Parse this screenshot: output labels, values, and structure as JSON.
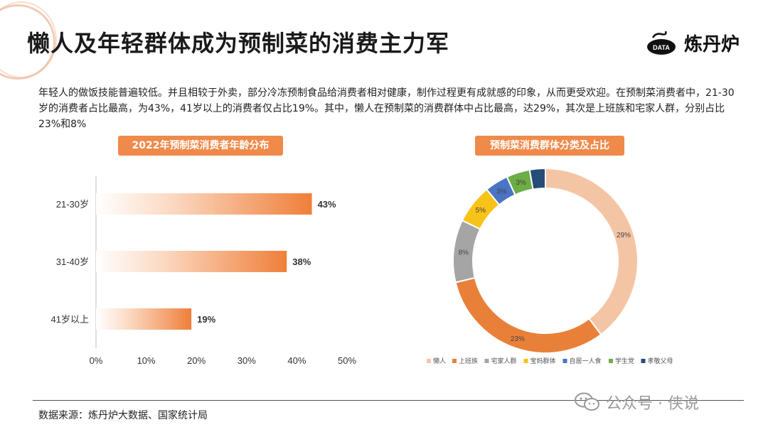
{
  "header": {
    "title": "懒人及年轻群体成为预制菜的消费主力军",
    "brand_name": "炼丹炉",
    "brand_logo_text": "DATA"
  },
  "description": "年轻人的做饭技能普遍较低。并且相较于外卖，部分冷冻预制食品给消费者相对健康，制作过程更有成就感的印象，从而更受欢迎。在预制菜消费者中，21-30岁的消费者占比最高，为43%，41岁以上的消费者仅占比19%。其中，懒人在预制菜的消费群体中占比最高，达29%，其次是上班族和宅家人群，分别占比23%和8%",
  "colors": {
    "accent": "#ef8a4a",
    "bar_fill": "#ef7f3a"
  },
  "chart_data": [
    {
      "type": "bar",
      "orientation": "horizontal",
      "title": "2022年预制菜消费者年龄分布",
      "categories": [
        "21-30岁",
        "31-40岁",
        "41岁以上"
      ],
      "values": [
        43,
        38,
        19
      ],
      "value_labels": [
        "43%",
        "38%",
        "19%"
      ],
      "xlim": [
        0,
        50
      ],
      "x_ticks": [
        "0%",
        "10%",
        "20%",
        "30%",
        "40%",
        "50%"
      ],
      "grid": false
    },
    {
      "type": "pie",
      "style": "donut",
      "title": "预制菜消费群体分类及占比",
      "legend_position": "bottom",
      "slices": [
        {
          "name": "懒人",
          "label": "29%",
          "color": "#f4c5a4"
        },
        {
          "name": "上班族",
          "label": "23%",
          "color": "#e9803a"
        },
        {
          "name": "宅家人群",
          "label": "8%",
          "color": "#a5a5a5"
        },
        {
          "name": "宝妈群体",
          "label": "5%",
          "color": "#f7c318"
        },
        {
          "name": "自居一人食",
          "label": "3%",
          "color": "#4a74c4"
        },
        {
          "name": "学生党",
          "label": "3%",
          "color": "#6cad46"
        },
        {
          "name": "孝敬父母",
          "label": "",
          "color": "#264c78"
        }
      ],
      "values": [
        29,
        23,
        8,
        5,
        3,
        3,
        2
      ]
    }
  ],
  "footer": {
    "source": "数据来源：炼丹炉大数据、国家统计局",
    "watermark": "公众号 · 侠说"
  }
}
